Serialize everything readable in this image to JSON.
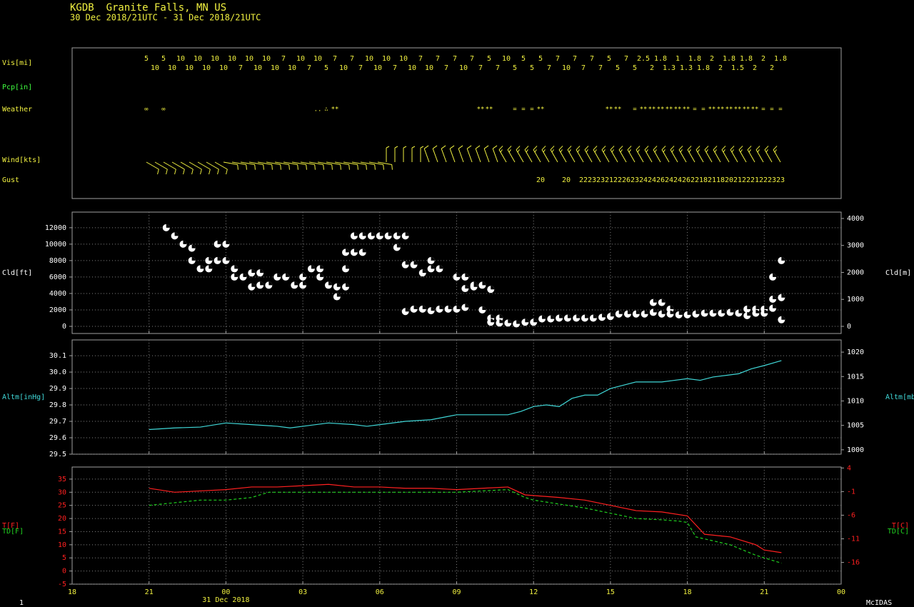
{
  "header": {
    "title": "KGDB  Granite Falls, MN US",
    "subtitle": "30 Dec 2018/21UTC - 31 Dec 2018/21UTC"
  },
  "footer": {
    "frame": "1",
    "software": "McIDAS"
  },
  "x_axis": {
    "xlim": [
      0,
      30
    ],
    "date_label": "31 Dec 2018",
    "xticks": [
      {
        "value": 0,
        "label": "18"
      },
      {
        "value": 3,
        "label": "21"
      },
      {
        "value": 6,
        "label": "00"
      },
      {
        "value": 9,
        "label": "03"
      },
      {
        "value": 12,
        "label": "06"
      },
      {
        "value": 15,
        "label": "09"
      },
      {
        "value": 18,
        "label": "12"
      },
      {
        "value": 21,
        "label": "15"
      },
      {
        "value": 24,
        "label": "18"
      },
      {
        "value": 27,
        "label": "21"
      },
      {
        "value": 30,
        "label": "00"
      }
    ]
  },
  "top_panel": {
    "labels": {
      "vis": "Vis[mi]",
      "pcp": "Pcp[in]",
      "weather": "Weather",
      "wind": "Wind[kts]",
      "gust": "Gust"
    },
    "vis": [
      5,
      10,
      5,
      10,
      10,
      10,
      10,
      10,
      10,
      10,
      10,
      7,
      10,
      10,
      10,
      10,
      7,
      10,
      10,
      7,
      10,
      5,
      7,
      10,
      7,
      7,
      10,
      10,
      10,
      7,
      10,
      10,
      7,
      10,
      7,
      7,
      7,
      10,
      7,
      7,
      5,
      7,
      10,
      5,
      5,
      5,
      5,
      7,
      7,
      10,
      7,
      7,
      7,
      7,
      5,
      5,
      7,
      5,
      2.5,
      2,
      1.8,
      1.3,
      1,
      1.3,
      1.8,
      1.8,
      2,
      2,
      1.8,
      1.5,
      1.8,
      2,
      2,
      2,
      1.8
    ],
    "weather": [
      "∞",
      null,
      "∞",
      null,
      null,
      null,
      null,
      null,
      null,
      null,
      null,
      null,
      null,
      null,
      null,
      null,
      null,
      null,
      null,
      null,
      "..",
      "∴",
      "**",
      null,
      null,
      null,
      null,
      null,
      null,
      null,
      null,
      null,
      null,
      null,
      null,
      null,
      null,
      null,
      null,
      "**",
      "**",
      null,
      null,
      "=",
      "=",
      "=",
      "**",
      null,
      null,
      null,
      null,
      null,
      null,
      null,
      "**",
      "**",
      null,
      "=",
      "**",
      "**",
      "**",
      "**",
      "**",
      "**",
      "=",
      "=",
      "**",
      "**",
      "**",
      "**",
      "**",
      "**",
      "=",
      "=",
      "="
    ],
    "wind_dir": [
      120,
      120,
      120,
      120,
      120,
      120,
      120,
      120,
      120,
      100,
      100,
      100,
      100,
      100,
      100,
      100,
      100,
      100,
      100,
      100,
      100,
      100,
      100,
      100,
      100,
      100,
      100,
      100,
      360,
      360,
      360,
      360,
      360,
      340,
      340,
      340,
      340,
      340,
      340,
      340,
      340,
      340,
      330,
      330,
      330,
      330,
      330,
      330,
      330,
      330,
      330,
      330,
      330,
      330,
      330,
      330,
      330,
      330,
      330,
      330,
      330,
      330,
      330,
      330,
      330,
      330,
      330,
      330,
      330,
      330,
      330,
      330,
      330,
      330,
      330
    ],
    "wind_speed": [
      10,
      10,
      10,
      10,
      10,
      10,
      10,
      10,
      10,
      10,
      10,
      10,
      10,
      10,
      10,
      10,
      10,
      10,
      10,
      10,
      10,
      10,
      10,
      10,
      10,
      10,
      10,
      10,
      5,
      5,
      5,
      5,
      5,
      10,
      10,
      10,
      10,
      10,
      10,
      10,
      10,
      10,
      15,
      15,
      15,
      15,
      15,
      15,
      15,
      15,
      15,
      15,
      15,
      15,
      15,
      15,
      15,
      15,
      15,
      15,
      15,
      15,
      15,
      15,
      15,
      15,
      15,
      15,
      15,
      15,
      15,
      15,
      15,
      15,
      15
    ],
    "gust": [
      null,
      null,
      null,
      null,
      null,
      null,
      null,
      null,
      null,
      null,
      null,
      null,
      null,
      null,
      null,
      null,
      null,
      null,
      null,
      null,
      null,
      null,
      null,
      null,
      null,
      null,
      null,
      null,
      null,
      null,
      null,
      null,
      null,
      null,
      null,
      null,
      null,
      null,
      null,
      null,
      null,
      null,
      null,
      null,
      null,
      null,
      20,
      null,
      null,
      20,
      null,
      22,
      23,
      23,
      21,
      22,
      26,
      23,
      24,
      24,
      26,
      24,
      24,
      26,
      22,
      18,
      21,
      18,
      20,
      21,
      22,
      21,
      22,
      23,
      23
    ]
  },
  "chart_data": [
    {
      "type": "scatter",
      "ylabel": "Cld[ft]",
      "y2label": "Cld[m]",
      "color": "#ffffff",
      "grid": true,
      "ylim": [
        -870,
        13900
      ],
      "yticks": [
        0,
        2000,
        4000,
        6000,
        8000,
        10000,
        12000
      ],
      "y2lim": [
        -265,
        4237
      ],
      "y2ticks": [
        0,
        1000,
        2000,
        3000,
        4000
      ],
      "x": [
        3.67,
        4,
        4.33,
        4.67,
        4.67,
        5,
        5.33,
        5.33,
        5.67,
        5.67,
        6,
        6,
        6.33,
        6.33,
        6.67,
        7,
        7,
        7.33,
        7.33,
        7.67,
        8,
        8.33,
        8.67,
        9,
        9,
        9.33,
        9.67,
        9.67,
        10,
        10.33,
        10.33,
        10.67,
        10.67,
        10.67,
        11,
        11,
        11.33,
        11.33,
        11.67,
        12,
        12.33,
        12.67,
        12.67,
        13,
        13,
        13,
        13.33,
        13.33,
        13.67,
        13.67,
        14,
        14,
        14,
        14.33,
        14.33,
        14.67,
        15,
        15,
        15.33,
        15.33,
        15.33,
        15.67,
        15.67,
        16,
        16,
        16.33,
        16.33,
        16.33,
        16.67,
        16.67,
        17,
        17.33,
        17.67,
        18,
        18.33,
        18.67,
        19,
        19.33,
        19.67,
        20,
        20.33,
        20.67,
        21,
        21.33,
        21.67,
        22,
        22.33,
        22.67,
        22.67,
        23,
        23,
        23.33,
        23.33,
        23.67,
        24,
        24.33,
        24.67,
        25,
        25.33,
        25.67,
        26,
        26.33,
        26.33,
        26.67,
        26.67,
        27,
        27,
        27.33,
        27.33,
        27.33,
        27.67,
        27.67,
        27.67
      ],
      "values": [
        12000,
        11000,
        10000,
        9500,
        8000,
        7000,
        7000,
        8000,
        10000,
        8000,
        10000,
        8000,
        7000,
        6000,
        6000,
        6500,
        4800,
        6500,
        5000,
        5000,
        6000,
        6000,
        5000,
        6000,
        5000,
        7000,
        7000,
        6000,
        5000,
        4800,
        3600,
        7000,
        4800,
        9000,
        9000,
        11000,
        11000,
        9000,
        11000,
        11000,
        11000,
        11000,
        9600,
        11000,
        7500,
        1800,
        7500,
        2100,
        6500,
        2100,
        8000,
        7000,
        1900,
        7000,
        2100,
        2100,
        6000,
        2100,
        6000,
        4600,
        2300,
        5000,
        4800,
        5000,
        2000,
        4500,
        1000,
        500,
        1000,
        400,
        400,
        300,
        500,
        500,
        900,
        900,
        1000,
        1000,
        1000,
        1000,
        1000,
        1100,
        1200,
        1500,
        1500,
        1500,
        1500,
        2900,
        1700,
        2900,
        1500,
        2100,
        1500,
        1400,
        1400,
        1500,
        1600,
        1600,
        1600,
        1700,
        1600,
        2100,
        1300,
        2100,
        1600,
        2100,
        1600,
        6000,
        3300,
        2200,
        8000,
        3500,
        800
      ]
    },
    {
      "type": "line",
      "ylabel": "Altm[inHg]",
      "y2label": "Altm[mb]",
      "grid": true,
      "ylim": [
        29.5,
        30.196
      ],
      "yticks": [
        29.5,
        29.6,
        29.7,
        29.8,
        29.9,
        {
          "value": 30,
          "label": "30.0"
        },
        30.1
      ],
      "y2lim": [
        999.1,
        1022.5
      ],
      "y2ticks": [
        1000,
        1005,
        1010,
        1015,
        1020
      ],
      "series": [
        {
          "color": "#40d8d8",
          "x": [
            3,
            4,
            5,
            6,
            7,
            8,
            8.5,
            9,
            10,
            11,
            11.5,
            12,
            13,
            14,
            15,
            16,
            17,
            17.5,
            18,
            18.5,
            19,
            19.5,
            20,
            20.5,
            21,
            21.5,
            22,
            23,
            23.5,
            24,
            24.5,
            25,
            26,
            26.5,
            27,
            27.67
          ],
          "values": [
            29.65,
            29.66,
            29.665,
            29.69,
            29.68,
            29.67,
            29.66,
            29.67,
            29.69,
            29.68,
            29.67,
            29.68,
            29.7,
            29.71,
            29.74,
            29.74,
            29.74,
            29.76,
            29.79,
            29.8,
            29.79,
            29.84,
            29.86,
            29.86,
            29.9,
            29.92,
            29.94,
            29.94,
            29.95,
            29.96,
            29.95,
            29.97,
            29.99,
            30.02,
            30.04,
            30.07
          ]
        }
      ]
    },
    {
      "type": "line",
      "y2labels": [
        "T[C]",
        "TD[C]"
      ],
      "grid": true,
      "ylim": [
        -5,
        39.6
      ],
      "yticks": [
        -5,
        0,
        5,
        10,
        15,
        20,
        25,
        30,
        35
      ],
      "y2lim": [
        -20.6,
        4.2
      ],
      "y2ticks": [
        -16,
        -11,
        -6,
        -1,
        4
      ],
      "series": [
        {
          "name": "T[F]",
          "color": "#ff2020",
          "style": "solid",
          "x": [
            3,
            3.67,
            4,
            5,
            6,
            7,
            8,
            9,
            10,
            11,
            12,
            13,
            14,
            15,
            16,
            17,
            17.67,
            19,
            20,
            21,
            22,
            23,
            24,
            24.67,
            25.67,
            26.67,
            27,
            27.67
          ],
          "values": [
            31.5,
            30.5,
            30,
            30.5,
            31,
            32,
            32,
            32.5,
            33,
            32,
            32,
            31.5,
            31.5,
            31,
            31.5,
            32,
            29,
            28,
            27,
            25,
            23,
            22.5,
            21,
            14,
            13,
            10,
            8,
            7
          ]
        },
        {
          "name": "TD[F]",
          "color": "#20d020",
          "style": "dashed",
          "x": [
            3,
            4,
            5,
            6,
            7,
            7.33,
            7.67,
            8,
            9,
            10,
            11,
            12,
            13,
            14,
            15,
            16,
            17,
            17.67,
            18,
            19,
            20,
            21,
            22,
            23,
            23.67,
            24,
            24.33,
            25.67,
            26.67,
            27.67
          ],
          "values": [
            25,
            26,
            27,
            27,
            28,
            29,
            30,
            30,
            30,
            30,
            30,
            30,
            30,
            30,
            30,
            30.5,
            31,
            28,
            27,
            25.5,
            24,
            22,
            20,
            19.5,
            19,
            18.5,
            13,
            10,
            6,
            3
          ]
        }
      ]
    }
  ]
}
